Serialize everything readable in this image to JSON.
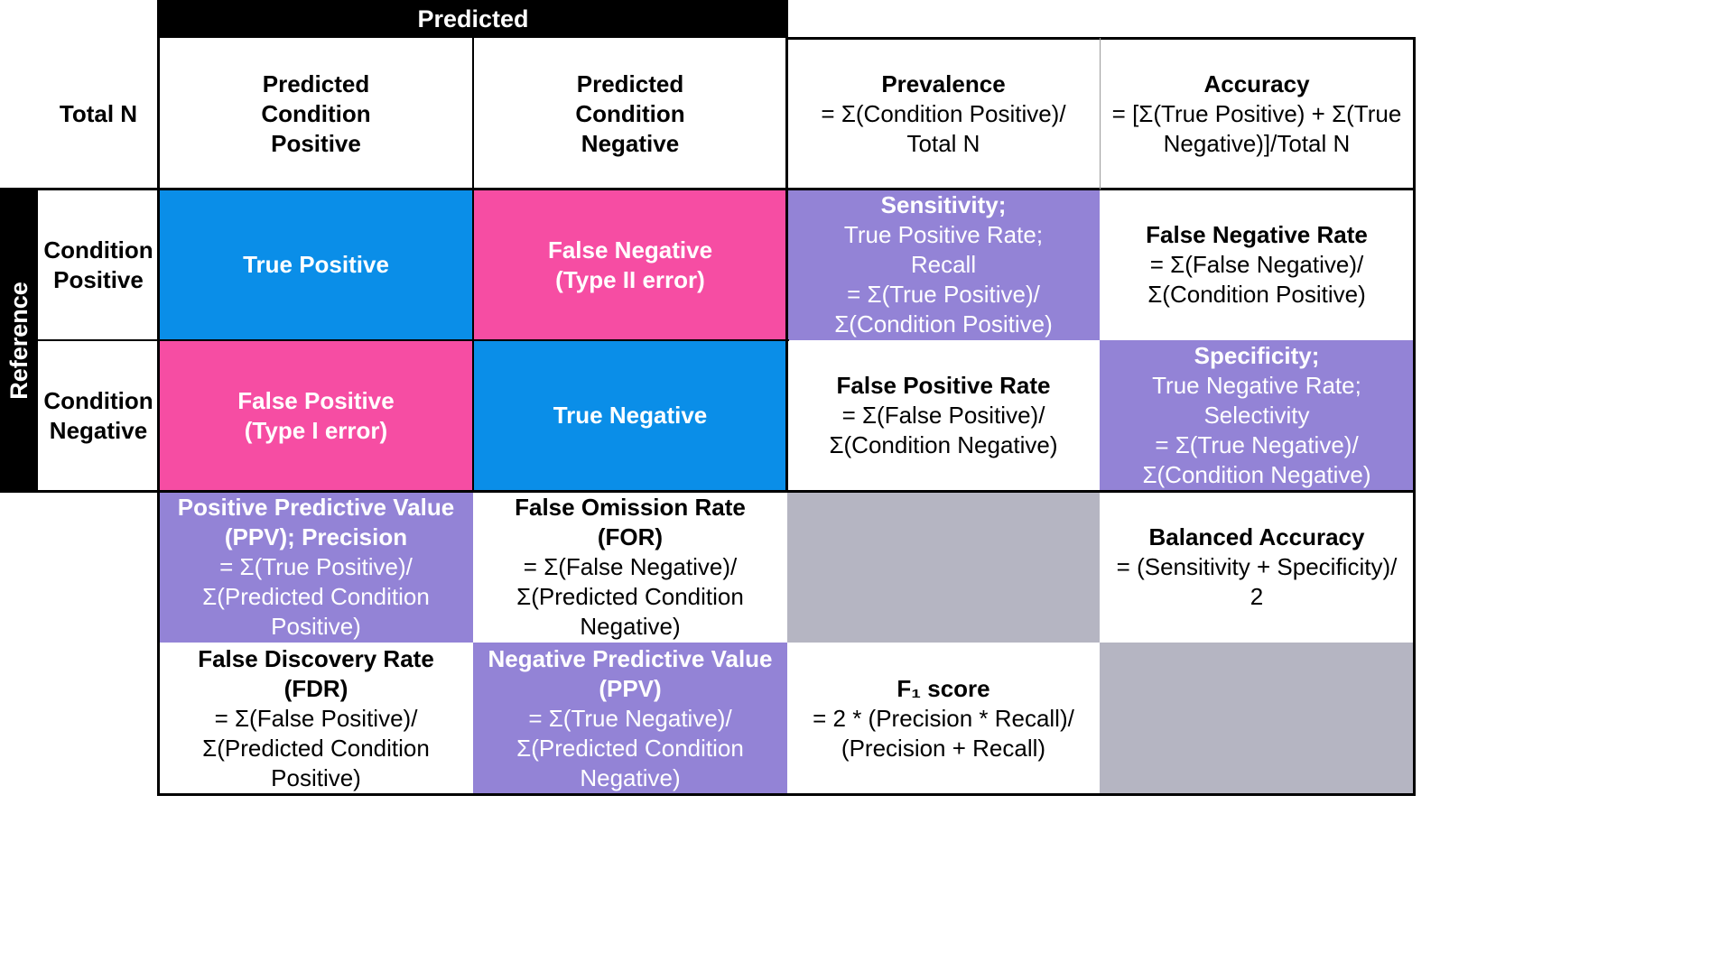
{
  "headers": {
    "predicted": "Predicted",
    "reference": "Reference",
    "total_n": "Total N",
    "pred_pos": "Predicted\nCondition\nPositive",
    "pred_neg": "Predicted\nCondition\nNegative",
    "cond_pos": "Condition\nPositive",
    "cond_neg": "Condition\nNegative"
  },
  "prevalence": {
    "title": "Prevalence",
    "formula": "= Σ(Condition Positive)/\nTotal N"
  },
  "accuracy": {
    "title": "Accuracy",
    "formula": "= [Σ(True Positive) + Σ(True\nNegative)]/Total N"
  },
  "matrix": {
    "tp": "True Positive",
    "fn": "False Negative\n(Type II error)",
    "fp": "False Positive\n(Type I error)",
    "tn": "True Negative"
  },
  "sensitivity": {
    "title": "Sensitivity;",
    "formula": "True Positive Rate;\nRecall\n= Σ(True Positive)/\nΣ(Condition Positive)"
  },
  "fnr": {
    "title": "False Negative Rate",
    "formula": "= Σ(False Negative)/\nΣ(Condition Positive)"
  },
  "fpr": {
    "title": "False Positive Rate",
    "formula": "= Σ(False Positive)/\nΣ(Condition Negative)"
  },
  "specificity": {
    "title": "Specificity;",
    "formula": "True Negative Rate;\nSelectivity\n= Σ(True Negative)/\nΣ(Condition Negative)"
  },
  "ppv": {
    "title": "Positive Predictive Value\n(PPV); Precision",
    "formula": "= Σ(True Positive)/\nΣ(Predicted Condition\nPositive)"
  },
  "for": {
    "title": "False Omission Rate\n(FOR)",
    "formula": "= Σ(False Negative)/\nΣ(Predicted Condition\nNegative)"
  },
  "balanced": {
    "title": "Balanced Accuracy",
    "formula": "= (Sensitivity + Specificity)/\n2"
  },
  "fdr": {
    "title": "False Discovery Rate\n(FDR)",
    "formula": "= Σ(False Positive)/\nΣ(Predicted Condition\nPositive)"
  },
  "npv": {
    "title": "Negative Predictive Value\n(PPV)",
    "formula": "= Σ(True Negative)/\nΣ(Predicted Condition\nNegative)"
  },
  "f1": {
    "title": "F₁ score",
    "formula": "= 2 * (Precision * Recall)/\n(Precision + Recall)"
  },
  "colors": {
    "blue": "#0a8ee8",
    "pink": "#f64da3",
    "purple": "#9383d6",
    "gray": "#b5b5c2"
  }
}
